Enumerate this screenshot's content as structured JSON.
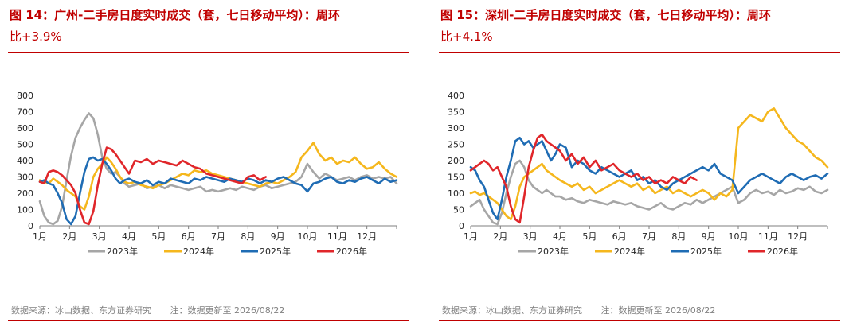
{
  "colors": {
    "title": "#c00000",
    "y2023": "#a6a6a6",
    "y2024": "#f5b71d",
    "y2025": "#1f6cb4",
    "y2026": "#e0262a"
  },
  "source_label": "数据来源：冰山数据、东方证券研究",
  "note_label": "注：数据更新至 2026/08/22",
  "chart_data": [
    {
      "type": "line",
      "title_line1": "图 14：广州-二手房日度实时成交（套，七日移动平均）：周环",
      "title_line2": "比+3.9%",
      "ylim": [
        0,
        800
      ],
      "yticks": [
        "0",
        "100",
        "200",
        "300",
        "400",
        "500",
        "600",
        "700",
        "800"
      ],
      "xlim": [
        1,
        13
      ],
      "xticks": [
        "1月",
        "2月",
        "3月",
        "4月",
        "5月",
        "6月",
        "7月",
        "8月",
        "9月",
        "10月",
        "11月",
        "12月"
      ],
      "legend": "bottom",
      "series": [
        {
          "name": "2023年",
          "x": [
            1.0,
            1.15,
            1.3,
            1.45,
            1.6,
            1.75,
            1.9,
            2.05,
            2.2,
            2.35,
            2.5,
            2.65,
            2.8,
            2.95,
            3.1,
            3.25,
            3.4,
            3.55,
            3.7,
            3.85,
            4.0,
            4.2,
            4.4,
            4.6,
            4.8,
            5.0,
            5.2,
            5.4,
            5.6,
            5.8,
            6.0,
            6.2,
            6.4,
            6.6,
            6.8,
            7.0,
            7.2,
            7.4,
            7.6,
            7.8,
            8.0,
            8.2,
            8.4,
            8.6,
            8.8,
            9.0,
            9.2,
            9.4,
            9.6,
            9.8,
            10.0,
            10.2,
            10.4,
            10.6,
            10.8,
            11.0,
            11.2,
            11.4,
            11.6,
            11.8,
            12.0,
            12.2,
            12.4,
            12.6,
            12.8,
            13.0
          ],
          "y": [
            150,
            60,
            20,
            10,
            30,
            120,
            280,
            430,
            540,
            600,
            650,
            690,
            660,
            560,
            420,
            350,
            320,
            330,
            300,
            260,
            240,
            250,
            260,
            230,
            240,
            250,
            230,
            250,
            240,
            230,
            220,
            230,
            240,
            210,
            220,
            210,
            220,
            230,
            220,
            240,
            230,
            220,
            240,
            250,
            230,
            240,
            250,
            260,
            270,
            300,
            380,
            330,
            290,
            320,
            300,
            280,
            290,
            300,
            280,
            300,
            310,
            290,
            300,
            290,
            300,
            260
          ]
        },
        {
          "name": "2024年",
          "x": [
            1.0,
            1.15,
            1.3,
            1.45,
            1.6,
            1.75,
            1.9,
            2.05,
            2.2,
            2.35,
            2.5,
            2.65,
            2.8,
            2.95,
            3.1,
            3.25,
            3.4,
            3.55,
            3.7,
            3.85,
            4.0,
            4.2,
            4.4,
            4.6,
            4.8,
            5.0,
            5.2,
            5.4,
            5.6,
            5.8,
            6.0,
            6.2,
            6.4,
            6.6,
            6.8,
            7.0,
            7.2,
            7.4,
            7.6,
            7.8,
            8.0,
            8.2,
            8.4,
            8.6,
            8.8,
            9.0,
            9.2,
            9.4,
            9.6,
            9.8,
            10.0,
            10.2,
            10.4,
            10.6,
            10.8,
            11.0,
            11.2,
            11.4,
            11.6,
            11.8,
            12.0,
            12.2,
            12.4,
            12.6,
            12.8,
            13.0
          ],
          "y": [
            280,
            270,
            260,
            290,
            270,
            250,
            220,
            200,
            180,
            120,
            100,
            180,
            300,
            350,
            380,
            420,
            390,
            350,
            300,
            270,
            260,
            270,
            250,
            240,
            230,
            250,
            260,
            280,
            300,
            320,
            310,
            340,
            330,
            340,
            320,
            310,
            300,
            290,
            280,
            270,
            260,
            250,
            240,
            260,
            270,
            260,
            280,
            300,
            330,
            420,
            460,
            510,
            440,
            400,
            420,
            380,
            400,
            390,
            420,
            380,
            350,
            360,
            390,
            350,
            320,
            300
          ]
        },
        {
          "name": "2025年",
          "x": [
            1.0,
            1.15,
            1.3,
            1.45,
            1.6,
            1.75,
            1.9,
            2.05,
            2.2,
            2.35,
            2.5,
            2.65,
            2.8,
            2.95,
            3.1,
            3.25,
            3.4,
            3.55,
            3.7,
            3.85,
            4.0,
            4.2,
            4.4,
            4.6,
            4.8,
            5.0,
            5.2,
            5.4,
            5.6,
            5.8,
            6.0,
            6.2,
            6.4,
            6.6,
            6.8,
            7.0,
            7.2,
            7.4,
            7.6,
            7.8,
            8.0,
            8.2,
            8.4,
            8.6,
            8.8,
            9.0,
            9.2,
            9.4,
            9.6,
            9.8,
            10.0,
            10.2,
            10.4,
            10.6,
            10.8,
            11.0,
            11.2,
            11.4,
            11.6,
            11.8,
            12.0,
            12.2,
            12.4,
            12.6,
            12.8,
            13.0
          ],
          "y": [
            270,
            280,
            260,
            250,
            200,
            140,
            40,
            10,
            60,
            200,
            330,
            410,
            420,
            400,
            410,
            380,
            340,
            290,
            260,
            280,
            290,
            270,
            260,
            280,
            250,
            270,
            260,
            290,
            280,
            270,
            260,
            290,
            280,
            300,
            290,
            280,
            270,
            290,
            280,
            270,
            290,
            280,
            260,
            280,
            270,
            290,
            300,
            280,
            260,
            250,
            210,
            260,
            270,
            290,
            300,
            270,
            260,
            280,
            270,
            290,
            300,
            280,
            260,
            290,
            270,
            280
          ]
        },
        {
          "name": "2026年",
          "x": [
            1.0,
            1.15,
            1.3,
            1.45,
            1.6,
            1.75,
            1.9,
            2.05,
            2.2,
            2.35,
            2.5,
            2.65,
            2.8,
            2.95,
            3.1,
            3.25,
            3.4,
            3.55,
            3.7,
            3.85,
            4.0,
            4.2,
            4.4,
            4.6,
            4.8,
            5.0,
            5.2,
            5.4,
            5.6,
            5.8,
            6.0,
            6.2,
            6.4,
            6.6,
            6.8,
            7.0,
            7.2,
            7.4,
            7.6,
            7.8,
            8.0,
            8.2,
            8.4,
            8.6
          ],
          "y": [
            270,
            260,
            330,
            340,
            330,
            310,
            280,
            250,
            200,
            100,
            20,
            10,
            90,
            250,
            380,
            480,
            470,
            440,
            400,
            360,
            320,
            400,
            390,
            410,
            380,
            400,
            390,
            380,
            370,
            400,
            380,
            360,
            350,
            320,
            310,
            300,
            290,
            280,
            270,
            260,
            300,
            310,
            280,
            300
          ]
        }
      ]
    },
    {
      "type": "line",
      "title_line1": "图 15：深圳-二手房日度实时成交（套，七日移动平均）：周环",
      "title_line2": "比+4.1%",
      "ylim": [
        0,
        400
      ],
      "yticks": [
        "0",
        "50",
        "100",
        "150",
        "200",
        "250",
        "300",
        "350",
        "400"
      ],
      "xlim": [
        1,
        13
      ],
      "xticks": [
        "1月",
        "2月",
        "3月",
        "4月",
        "5月",
        "6月",
        "7月",
        "8月",
        "9月",
        "10月",
        "11月",
        "12月"
      ],
      "legend": "bottom",
      "series": [
        {
          "name": "2023年",
          "x": [
            1.0,
            1.15,
            1.3,
            1.45,
            1.6,
            1.75,
            1.9,
            2.05,
            2.2,
            2.35,
            2.5,
            2.65,
            2.8,
            2.95,
            3.1,
            3.25,
            3.4,
            3.55,
            3.7,
            3.85,
            4.0,
            4.2,
            4.4,
            4.6,
            4.8,
            5.0,
            5.2,
            5.4,
            5.6,
            5.8,
            6.0,
            6.2,
            6.4,
            6.6,
            6.8,
            7.0,
            7.2,
            7.4,
            7.6,
            7.8,
            8.0,
            8.2,
            8.4,
            8.6,
            8.8,
            9.0,
            9.2,
            9.4,
            9.6,
            9.8,
            10.0,
            10.2,
            10.4,
            10.6,
            10.8,
            11.0,
            11.2,
            11.4,
            11.6,
            11.8,
            12.0,
            12.2,
            12.4,
            12.6,
            12.8,
            13.0
          ],
          "y": [
            60,
            70,
            80,
            50,
            30,
            10,
            5,
            40,
            100,
            150,
            190,
            200,
            180,
            140,
            120,
            110,
            100,
            110,
            100,
            90,
            90,
            80,
            85,
            75,
            70,
            80,
            75,
            70,
            65,
            75,
            70,
            65,
            70,
            60,
            55,
            50,
            60,
            70,
            55,
            50,
            60,
            70,
            65,
            80,
            70,
            80,
            90,
            100,
            110,
            120,
            70,
            80,
            100,
            110,
            100,
            105,
            95,
            110,
            100,
            105,
            115,
            110,
            120,
            105,
            100,
            110
          ]
        },
        {
          "name": "2024年",
          "x": [
            1.0,
            1.15,
            1.3,
            1.45,
            1.6,
            1.75,
            1.9,
            2.05,
            2.2,
            2.35,
            2.5,
            2.65,
            2.8,
            2.95,
            3.1,
            3.25,
            3.4,
            3.55,
            3.7,
            3.85,
            4.0,
            4.2,
            4.4,
            4.6,
            4.8,
            5.0,
            5.2,
            5.4,
            5.6,
            5.8,
            6.0,
            6.2,
            6.4,
            6.6,
            6.8,
            7.0,
            7.2,
            7.4,
            7.6,
            7.8,
            8.0,
            8.2,
            8.4,
            8.6,
            8.8,
            9.0,
            9.2,
            9.4,
            9.6,
            9.8,
            10.0,
            10.2,
            10.4,
            10.6,
            10.8,
            11.0,
            11.2,
            11.4,
            11.6,
            11.8,
            12.0,
            12.2,
            12.4,
            12.6,
            12.8,
            13.0
          ],
          "y": [
            100,
            105,
            95,
            100,
            90,
            80,
            70,
            50,
            30,
            20,
            60,
            120,
            150,
            160,
            170,
            180,
            190,
            170,
            160,
            150,
            140,
            130,
            120,
            130,
            110,
            120,
            100,
            110,
            120,
            130,
            140,
            130,
            120,
            130,
            110,
            120,
            100,
            110,
            120,
            100,
            110,
            100,
            90,
            100,
            110,
            100,
            80,
            100,
            90,
            110,
            300,
            320,
            340,
            330,
            320,
            350,
            360,
            330,
            300,
            280,
            260,
            250,
            230,
            210,
            200,
            180
          ]
        },
        {
          "name": "2025年",
          "x": [
            1.0,
            1.15,
            1.3,
            1.45,
            1.6,
            1.75,
            1.9,
            2.05,
            2.2,
            2.35,
            2.5,
            2.65,
            2.8,
            2.95,
            3.1,
            3.25,
            3.4,
            3.55,
            3.7,
            3.85,
            4.0,
            4.2,
            4.4,
            4.6,
            4.8,
            5.0,
            5.2,
            5.4,
            5.6,
            5.8,
            6.0,
            6.2,
            6.4,
            6.6,
            6.8,
            7.0,
            7.2,
            7.4,
            7.6,
            7.8,
            8.0,
            8.2,
            8.4,
            8.6,
            8.8,
            9.0,
            9.2,
            9.4,
            9.6,
            9.8,
            10.0,
            10.2,
            10.4,
            10.6,
            10.8,
            11.0,
            11.2,
            11.4,
            11.6,
            11.8,
            12.0,
            12.2,
            12.4,
            12.6,
            12.8,
            13.0
          ],
          "y": [
            180,
            170,
            140,
            120,
            80,
            40,
            20,
            80,
            150,
            200,
            260,
            270,
            250,
            260,
            240,
            250,
            260,
            230,
            200,
            220,
            250,
            240,
            180,
            200,
            190,
            170,
            160,
            180,
            170,
            160,
            150,
            160,
            170,
            140,
            150,
            130,
            140,
            120,
            110,
            130,
            140,
            150,
            160,
            170,
            180,
            170,
            190,
            160,
            150,
            140,
            100,
            120,
            140,
            150,
            160,
            150,
            140,
            130,
            150,
            160,
            150,
            140,
            150,
            155,
            145,
            160
          ]
        },
        {
          "name": "2026年",
          "x": [
            1.0,
            1.15,
            1.3,
            1.45,
            1.6,
            1.75,
            1.9,
            2.05,
            2.2,
            2.35,
            2.5,
            2.65,
            2.8,
            2.95,
            3.1,
            3.25,
            3.4,
            3.55,
            3.7,
            3.85,
            4.0,
            4.2,
            4.4,
            4.6,
            4.8,
            5.0,
            5.2,
            5.4,
            5.6,
            5.8,
            6.0,
            6.2,
            6.4,
            6.6,
            6.8,
            7.0,
            7.2,
            7.4,
            7.6,
            7.8,
            8.0,
            8.2,
            8.4,
            8.6
          ],
          "y": [
            170,
            180,
            190,
            200,
            190,
            170,
            180,
            150,
            120,
            60,
            20,
            10,
            90,
            180,
            230,
            270,
            280,
            260,
            250,
            240,
            230,
            200,
            220,
            190,
            210,
            180,
            200,
            170,
            180,
            190,
            170,
            160,
            150,
            160,
            140,
            150,
            130,
            140,
            130,
            150,
            140,
            130,
            150,
            140
          ]
        }
      ]
    }
  ]
}
